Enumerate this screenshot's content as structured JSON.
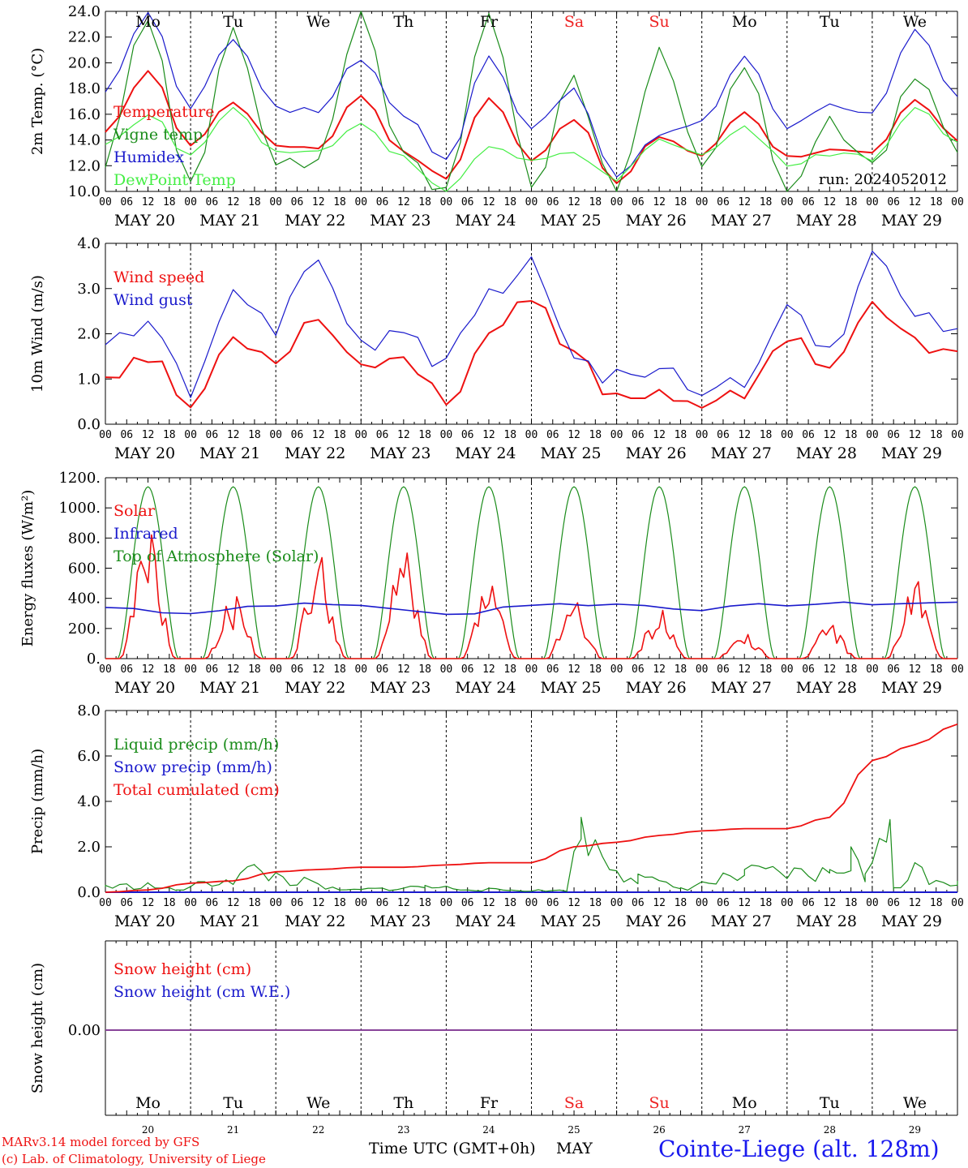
{
  "colors": {
    "red": "#ee1111",
    "green": "#1a8c1a",
    "blue": "#1a1acc",
    "lightgreen": "#44ee44",
    "purple": "#884499",
    "dayred": "#ee2222"
  },
  "hour_ticks": [
    "00",
    "06",
    "12",
    "18"
  ],
  "final_tick": "00",
  "date_labels": [
    "MAY 20",
    "MAY 21",
    "MAY 22",
    "MAY 23",
    "MAY 24",
    "MAY 25",
    "MAY 26",
    "MAY 27",
    "MAY 28",
    "MAY 29"
  ],
  "weekdays": [
    "Mo",
    "Tu",
    "We",
    "Th",
    "Fr",
    "Sa",
    "Su",
    "Mo",
    "Tu",
    "We"
  ],
  "weekend_flags": [
    false,
    false,
    false,
    false,
    false,
    true,
    true,
    false,
    false,
    false
  ],
  "day_numbers": [
    "20",
    "21",
    "22",
    "23",
    "24",
    "25",
    "26",
    "27",
    "28",
    "29"
  ],
  "bottom_month": "MAY",
  "x_axis_title": "Time UTC (GMT+0h)",
  "run_label": "run: 2024052012",
  "model_credit": "MARv3.14 model forced by GFS",
  "lab_credit": "(c) Lab. of Climatology, University of Liege",
  "station": "Cointe-Liege (alt. 128m)",
  "chart_data": [
    {
      "type": "line",
      "ylabel": "2m Temp. (°C)",
      "ylim": [
        10,
        24
      ],
      "yticks": [
        "10.0",
        "12.0",
        "14.0",
        "16.0",
        "18.0",
        "20.0",
        "22.0",
        "24.0"
      ],
      "x_hours": [
        0,
        12,
        24,
        36,
        48,
        60,
        72,
        84,
        96,
        108,
        120,
        132,
        144,
        156,
        168,
        180,
        192,
        204,
        216,
        228,
        240
      ],
      "legend": [
        "Temperature",
        "Vigne temp",
        "Humidex",
        "DewPoint Temp"
      ],
      "series": [
        {
          "name": "Temperature",
          "color": "red",
          "values": [
            14.5,
            19.4,
            13.6,
            17.0,
            13.6,
            13.4,
            17.5,
            13.0,
            11.0,
            17.3,
            12.5,
            15.7,
            10.6,
            14.3,
            12.8,
            16.2,
            12.7,
            13.2,
            12.9,
            17.1,
            14.0
          ]
        },
        {
          "name": "Vigne temp",
          "color": "green",
          "values": [
            12.4,
            23.9,
            10.4,
            22.5,
            12.5,
            12.2,
            23.9,
            13.0,
            10.1,
            23.9,
            10.5,
            18.6,
            10.1,
            20.6,
            12.0,
            20.1,
            10.0,
            15.4,
            12.1,
            19.1,
            13.5
          ]
        },
        {
          "name": "Humidex",
          "color": "blue",
          "values": [
            17.8,
            23.8,
            16.6,
            22.0,
            16.4,
            16.3,
            20.4,
            16.0,
            12.3,
            20.5,
            14.8,
            18.0,
            11.0,
            14.3,
            15.5,
            20.3,
            15.0,
            16.6,
            16.2,
            22.4,
            17.6
          ]
        },
        {
          "name": "DewPoint Temp",
          "color": "lightgreen",
          "values": [
            13.6,
            16.0,
            12.8,
            16.5,
            13.0,
            13.1,
            15.3,
            12.6,
            10.1,
            13.4,
            12.2,
            13.1,
            10.9,
            14.2,
            12.8,
            15.0,
            12.2,
            13.0,
            12.6,
            16.5,
            13.6
          ]
        }
      ]
    },
    {
      "type": "line",
      "ylabel": "10m Wind (m/s)",
      "ylim": [
        0,
        4
      ],
      "yticks": [
        "0.0",
        "1.0",
        "2.0",
        "3.0",
        "4.0"
      ],
      "x_hours": [
        0,
        12,
        24,
        36,
        48,
        60,
        72,
        84,
        96,
        108,
        120,
        132,
        144,
        156,
        168,
        180,
        192,
        204,
        216,
        228,
        240
      ],
      "legend": [
        "Wind speed",
        "Wind gust"
      ],
      "series": [
        {
          "name": "Wind speed",
          "color": "red",
          "values": [
            1.1,
            1.5,
            0.4,
            1.9,
            1.5,
            2.4,
            1.3,
            1.5,
            0.5,
            2.0,
            2.7,
            1.5,
            0.6,
            0.7,
            0.5,
            0.6,
            2.0,
            1.3,
            2.6,
            1.8,
            1.5
          ]
        },
        {
          "name": "Wind gust",
          "color": "blue",
          "values": [
            1.7,
            2.2,
            0.8,
            3.0,
            2.2,
            3.7,
            1.7,
            1.9,
            1.4,
            2.8,
            3.5,
            1.7,
            1.0,
            1.1,
            0.9,
            1.0,
            2.6,
            1.6,
            3.6,
            2.3,
            2.2
          ]
        }
      ]
    },
    {
      "type": "line",
      "ylabel": "Energy fluxes (W/m²)",
      "ylim": [
        0,
        1200
      ],
      "yticks": [
        "0.",
        "200.",
        "400.",
        "600.",
        "800.",
        "1000.",
        "1200."
      ],
      "legend": [
        "Solar",
        "Infrared",
        "Top of Atmosphere (Solar)"
      ],
      "series": [
        {
          "name": "Solar",
          "color": "red",
          "daily_peak": [
            820,
            410,
            670,
            700,
            480,
            370,
            320,
            160,
            220,
            510
          ],
          "peak_hour": 13
        },
        {
          "name": "Infrared",
          "color": "blue",
          "x_hours": [
            0,
            24,
            48,
            72,
            96,
            120,
            144,
            168,
            192,
            216,
            240
          ],
          "values": [
            340,
            305,
            360,
            355,
            290,
            360,
            360,
            330,
            360,
            365,
            370
          ]
        },
        {
          "name": "Top of Atmosphere (Solar)",
          "color": "green",
          "daily_peak": [
            1140,
            1140,
            1140,
            1140,
            1140,
            1140,
            1140,
            1140,
            1140,
            1140
          ],
          "peak_hour": 12
        }
      ]
    },
    {
      "type": "line",
      "ylabel": "Precip (mm/h)",
      "ylim": [
        0,
        8
      ],
      "yticks": [
        "0.0",
        "2.0",
        "4.0",
        "6.0",
        "8.0"
      ],
      "legend": [
        "Liquid precip (mm/h)",
        "Snow precip (mm/h)",
        "Total cumulated (cm)"
      ],
      "series": [
        {
          "name": "Liquid precip (mm/h)",
          "color": "green",
          "x_hours": [
            0,
            12,
            20,
            42,
            66,
            90,
            114,
            130,
            134,
            150,
            162,
            180,
            204,
            210,
            214,
            221,
            222,
            228,
            240
          ],
          "values": [
            0.3,
            0.4,
            0.1,
            1.2,
            0.1,
            0.3,
            0.1,
            0.1,
            3.3,
            0.8,
            0.2,
            1.0,
            1.0,
            2.0,
            0.8,
            3.2,
            0.2,
            1.3,
            0.5
          ]
        },
        {
          "name": "Snow precip (mm/h)",
          "color": "blue",
          "values": [
            0,
            0
          ]
        },
        {
          "name": "Total cumulated (cm)",
          "color": "red",
          "x_hours": [
            0,
            12,
            24,
            36,
            48,
            60,
            72,
            84,
            96,
            108,
            120,
            132,
            144,
            156,
            168,
            180,
            192,
            204,
            216,
            228,
            240
          ],
          "values": [
            0.0,
            0.1,
            0.4,
            0.5,
            0.9,
            1.0,
            1.1,
            1.1,
            1.2,
            1.3,
            1.3,
            2.0,
            2.2,
            2.5,
            2.7,
            2.8,
            2.8,
            3.3,
            5.8,
            6.5,
            7.4
          ]
        }
      ]
    },
    {
      "type": "line",
      "ylabel": "Snow height (cm)",
      "ytick": "0.00",
      "legend": [
        "Snow height (cm)",
        "Snow height (cm W.E.)"
      ],
      "series": [
        {
          "name": "Snow height (cm)",
          "color": "red",
          "values": [
            0,
            0
          ]
        },
        {
          "name": "Snow height (cm W.E.)",
          "color": "blue",
          "values": [
            0,
            0
          ]
        }
      ]
    }
  ]
}
